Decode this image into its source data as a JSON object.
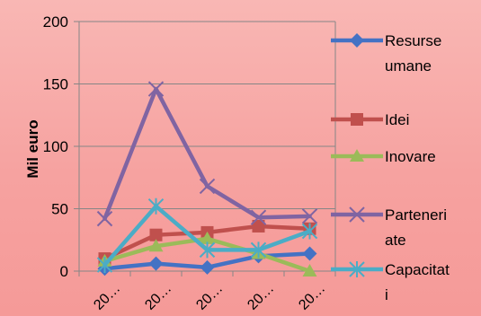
{
  "chart_data": {
    "type": "line",
    "title": "",
    "xlabel": "",
    "ylabel": "Mil euro",
    "ylim": [
      0,
      200
    ],
    "yticks": [
      0,
      50,
      100,
      150,
      200
    ],
    "grid": false,
    "legend_position": "right",
    "categories": [
      "20…",
      "20…",
      "20…",
      "20…",
      "20…"
    ],
    "series": [
      {
        "name": "Resurse umane",
        "legend_lines": [
          "Resurse",
          "umane"
        ],
        "color": "#4472C4",
        "marker": "diamond",
        "values": [
          2,
          6,
          3,
          12,
          14
        ]
      },
      {
        "name": "Idei",
        "legend_lines": [
          "Idei"
        ],
        "color": "#C0504D",
        "marker": "square",
        "values": [
          10,
          29,
          31,
          36,
          34
        ]
      },
      {
        "name": "Inovare",
        "legend_lines": [
          "Inovare"
        ],
        "color": "#9BBB59",
        "marker": "triangle",
        "values": [
          8,
          20,
          26,
          14,
          0
        ]
      },
      {
        "name": "Parteneriate",
        "legend_lines": [
          "Parteneri",
          "ate"
        ],
        "color": "#8064A2",
        "marker": "x",
        "values": [
          42,
          146,
          68,
          43,
          44
        ]
      },
      {
        "name": "Capacitati",
        "legend_lines": [
          "Capacitat",
          "i"
        ],
        "color": "#4BACC6",
        "marker": "asterisk",
        "values": [
          5,
          52,
          17,
          17,
          32
        ]
      }
    ]
  }
}
